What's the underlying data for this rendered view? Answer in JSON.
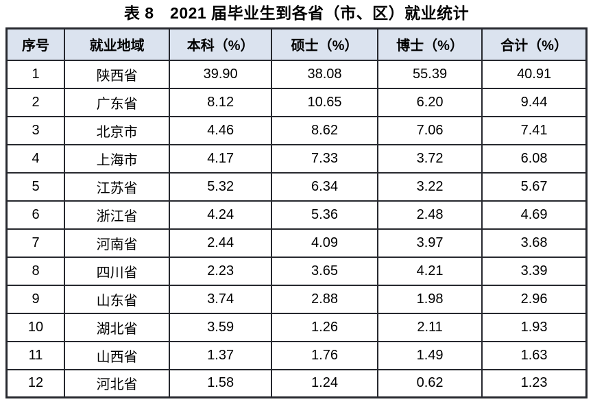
{
  "title": "表 8　2021 届毕业生到各省（市、区）就业统计",
  "table": {
    "headers": [
      "序号",
      "就业地域",
      "本科（%）",
      "硕士（%）",
      "博士（%）",
      "合计（%）"
    ],
    "rows": [
      [
        "1",
        "陕西省",
        "39.90",
        "38.08",
        "55.39",
        "40.91"
      ],
      [
        "2",
        "广东省",
        "8.12",
        "10.65",
        "6.20",
        "9.44"
      ],
      [
        "3",
        "北京市",
        "4.46",
        "8.62",
        "7.06",
        "7.41"
      ],
      [
        "4",
        "上海市",
        "4.17",
        "7.33",
        "3.72",
        "6.08"
      ],
      [
        "5",
        "江苏省",
        "5.32",
        "6.34",
        "3.22",
        "5.67"
      ],
      [
        "6",
        "浙江省",
        "4.24",
        "5.36",
        "2.48",
        "4.69"
      ],
      [
        "7",
        "河南省",
        "2.44",
        "4.09",
        "3.97",
        "3.68"
      ],
      [
        "8",
        "四川省",
        "2.23",
        "3.65",
        "4.21",
        "3.39"
      ],
      [
        "9",
        "山东省",
        "3.74",
        "2.88",
        "1.98",
        "2.96"
      ],
      [
        "10",
        "湖北省",
        "3.59",
        "1.26",
        "2.11",
        "1.93"
      ],
      [
        "11",
        "山西省",
        "1.37",
        "1.76",
        "1.49",
        "1.63"
      ],
      [
        "12",
        "河北省",
        "1.58",
        "1.24",
        "0.62",
        "1.23"
      ]
    ]
  },
  "colors": {
    "header_bg": "#dbe3ef",
    "border": "#26282e",
    "text": "#000000",
    "page_bg": "#ffffff"
  }
}
